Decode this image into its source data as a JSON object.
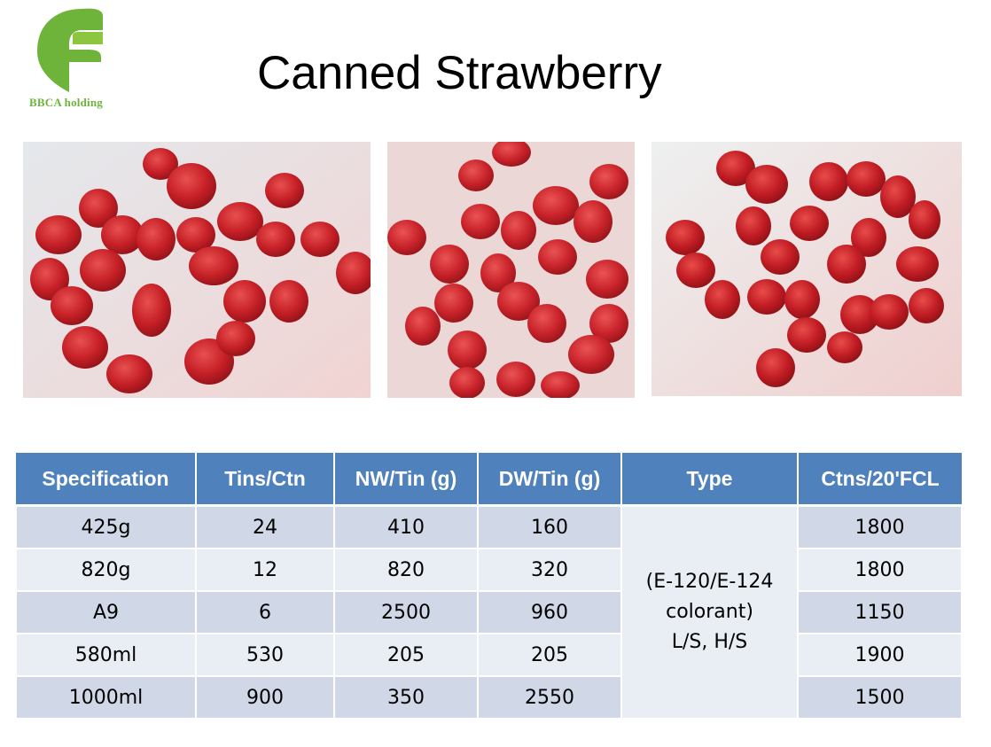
{
  "logo": {
    "text": "BBCA holding",
    "color": "#6fb43a"
  },
  "title": "Canned Strawberry",
  "photos": [
    {
      "name": "canned-strawberry-photo-1",
      "subject": "canned strawberries on plate"
    },
    {
      "name": "canned-strawberry-photo-2",
      "subject": "canned strawberries on plate"
    },
    {
      "name": "canned-strawberry-photo-3",
      "subject": "canned strawberries on plate"
    }
  ],
  "table": {
    "header_color": "#4f81bd",
    "headers": [
      "Specification",
      "Tins/Ctn",
      "NW/Tin (g)",
      "DW/Tin (g)",
      "Type",
      "Ctns/20'FCL"
    ],
    "rows": [
      {
        "spec": "425g",
        "tins": "24",
        "nw": "410",
        "dw": "160",
        "fcl": "1800"
      },
      {
        "spec": "820g",
        "tins": "12",
        "nw": "820",
        "dw": "320",
        "fcl": "1800"
      },
      {
        "spec": "A9",
        "tins": "6",
        "nw": "2500",
        "dw": "960",
        "fcl": "1150"
      },
      {
        "spec": "580ml",
        "tins": "530",
        "nw": "205",
        "dw": "205",
        "fcl": "1900"
      },
      {
        "spec": "1000ml",
        "tins": "900",
        "nw": "350",
        "dw": "2550",
        "fcl": "1500"
      }
    ],
    "type_lines": [
      "(E-120/E-124",
      "colorant)",
      "L/S, H/S"
    ]
  }
}
